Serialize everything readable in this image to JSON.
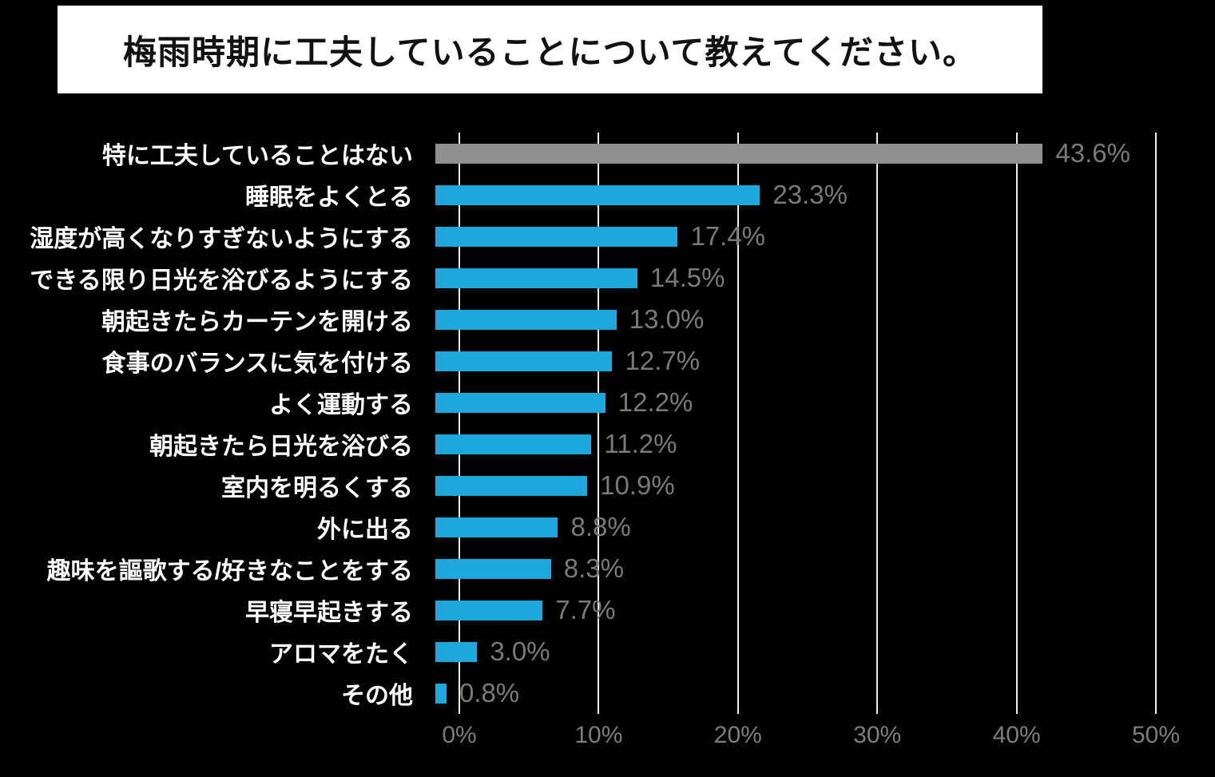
{
  "title": "梅雨時期に工夫していることについて教えてください。",
  "colors": {
    "background": "#000000",
    "title_bg": "#ffffff",
    "title_text": "#111111",
    "bar_blue": "#1ea7dd",
    "bar_gray": "#8f8f8f",
    "value_label": "#7a7a7a",
    "category_label": "#ffffff",
    "axis_label": "#7d7d7d",
    "grid": "#eeeeee"
  },
  "chart_data": {
    "type": "bar",
    "orientation": "horizontal",
    "title": "梅雨時期に工夫していることについて教えてください。",
    "categories": [
      "特に工夫していることはない",
      "睡眠をよくとる",
      "湿度が高くなりすぎないようにする",
      "できる限り日光を浴びるようにする",
      "朝起きたらカーテンを開ける",
      "食事のバランスに気を付ける",
      "よく運動する",
      "朝起きたら日光を浴びる",
      "室内を明るくする",
      "外に出る",
      "趣味を謳歌する/好きなことをする",
      "早寝早起きする",
      "アロマをたく",
      "その他"
    ],
    "values": [
      43.6,
      23.3,
      17.4,
      14.5,
      13.0,
      12.7,
      12.2,
      11.2,
      10.9,
      8.8,
      8.3,
      7.7,
      3.0,
      0.8
    ],
    "value_labels": [
      "43.6%",
      "23.3%",
      "17.4%",
      "14.5%",
      "13.0%",
      "12.7%",
      "12.2%",
      "11.2%",
      "10.9%",
      "8.8%",
      "8.3%",
      "7.7%",
      "3.0%",
      "0.8%"
    ],
    "bar_colors": [
      "gray",
      "blue",
      "blue",
      "blue",
      "blue",
      "blue",
      "blue",
      "blue",
      "blue",
      "blue",
      "blue",
      "blue",
      "blue",
      "blue"
    ],
    "x_ticks": [
      "0%",
      "10%",
      "20%",
      "30%",
      "40%",
      "50%"
    ],
    "x_tick_values": [
      0,
      10,
      20,
      30,
      40,
      50
    ],
    "xlim": [
      0,
      50
    ],
    "xlabel": "",
    "ylabel": "",
    "grid": true,
    "legend": false
  }
}
